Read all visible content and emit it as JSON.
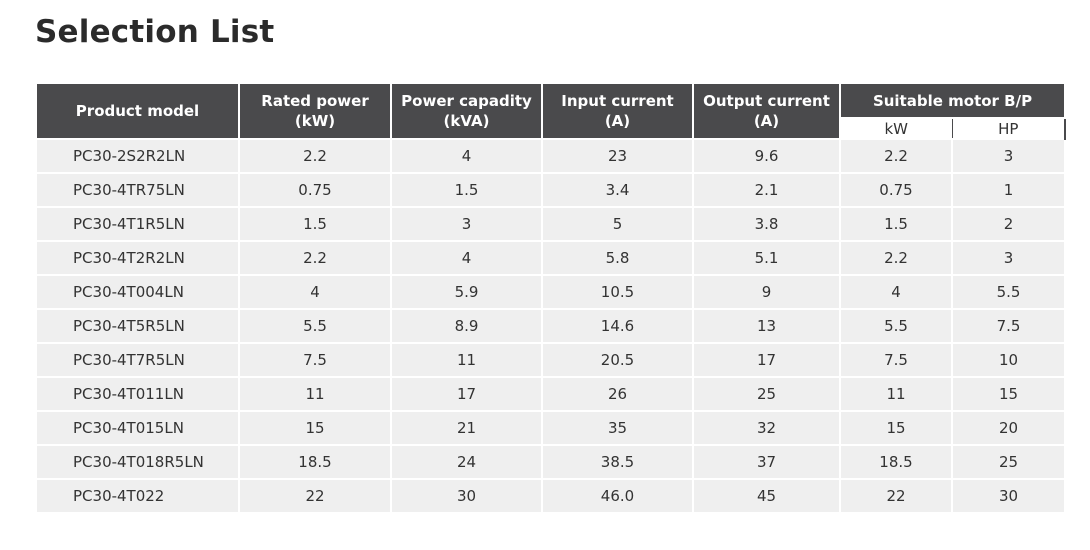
{
  "title": "Selection List",
  "table": {
    "headers": {
      "model": "Product model",
      "rated_power": [
        "Rated power",
        "(kW)"
      ],
      "power_capacity": [
        "Power capadity",
        "(kVA)"
      ],
      "input_current": [
        "Input current",
        "(A)"
      ],
      "output_current": [
        "Output current",
        "(A)"
      ],
      "motor_group": "Suitable motor B/P",
      "motor_kw": "kW",
      "motor_hp": "HP"
    },
    "rows": [
      [
        "PC30-2S2R2LN",
        "2.2",
        "4",
        "23",
        "9.6",
        "2.2",
        "3"
      ],
      [
        "PC30-4TR75LN",
        "0.75",
        "1.5",
        "3.4",
        "2.1",
        "0.75",
        "1"
      ],
      [
        "PC30-4T1R5LN",
        "1.5",
        "3",
        "5",
        "3.8",
        "1.5",
        "2"
      ],
      [
        "PC30-4T2R2LN",
        "2.2",
        "4",
        "5.8",
        "5.1",
        "2.2",
        "3"
      ],
      [
        "PC30-4T004LN",
        "4",
        "5.9",
        "10.5",
        "9",
        "4",
        "5.5"
      ],
      [
        "PC30-4T5R5LN",
        "5.5",
        "8.9",
        "14.6",
        "13",
        "5.5",
        "7.5"
      ],
      [
        "PC30-4T7R5LN",
        "7.5",
        "11",
        "20.5",
        "17",
        "7.5",
        "10"
      ],
      [
        "PC30-4T011LN",
        "11",
        "17",
        "26",
        "25",
        "11",
        "15"
      ],
      [
        "PC30-4T015LN",
        "15",
        "21",
        "35",
        "32",
        "15",
        "20"
      ],
      [
        "PC30-4T018R5LN",
        "18.5",
        "24",
        "38.5",
        "37",
        "18.5",
        "25"
      ],
      [
        "PC30-4T022",
        "22",
        "30",
        "46.0",
        "45",
        "22",
        "30"
      ]
    ]
  }
}
